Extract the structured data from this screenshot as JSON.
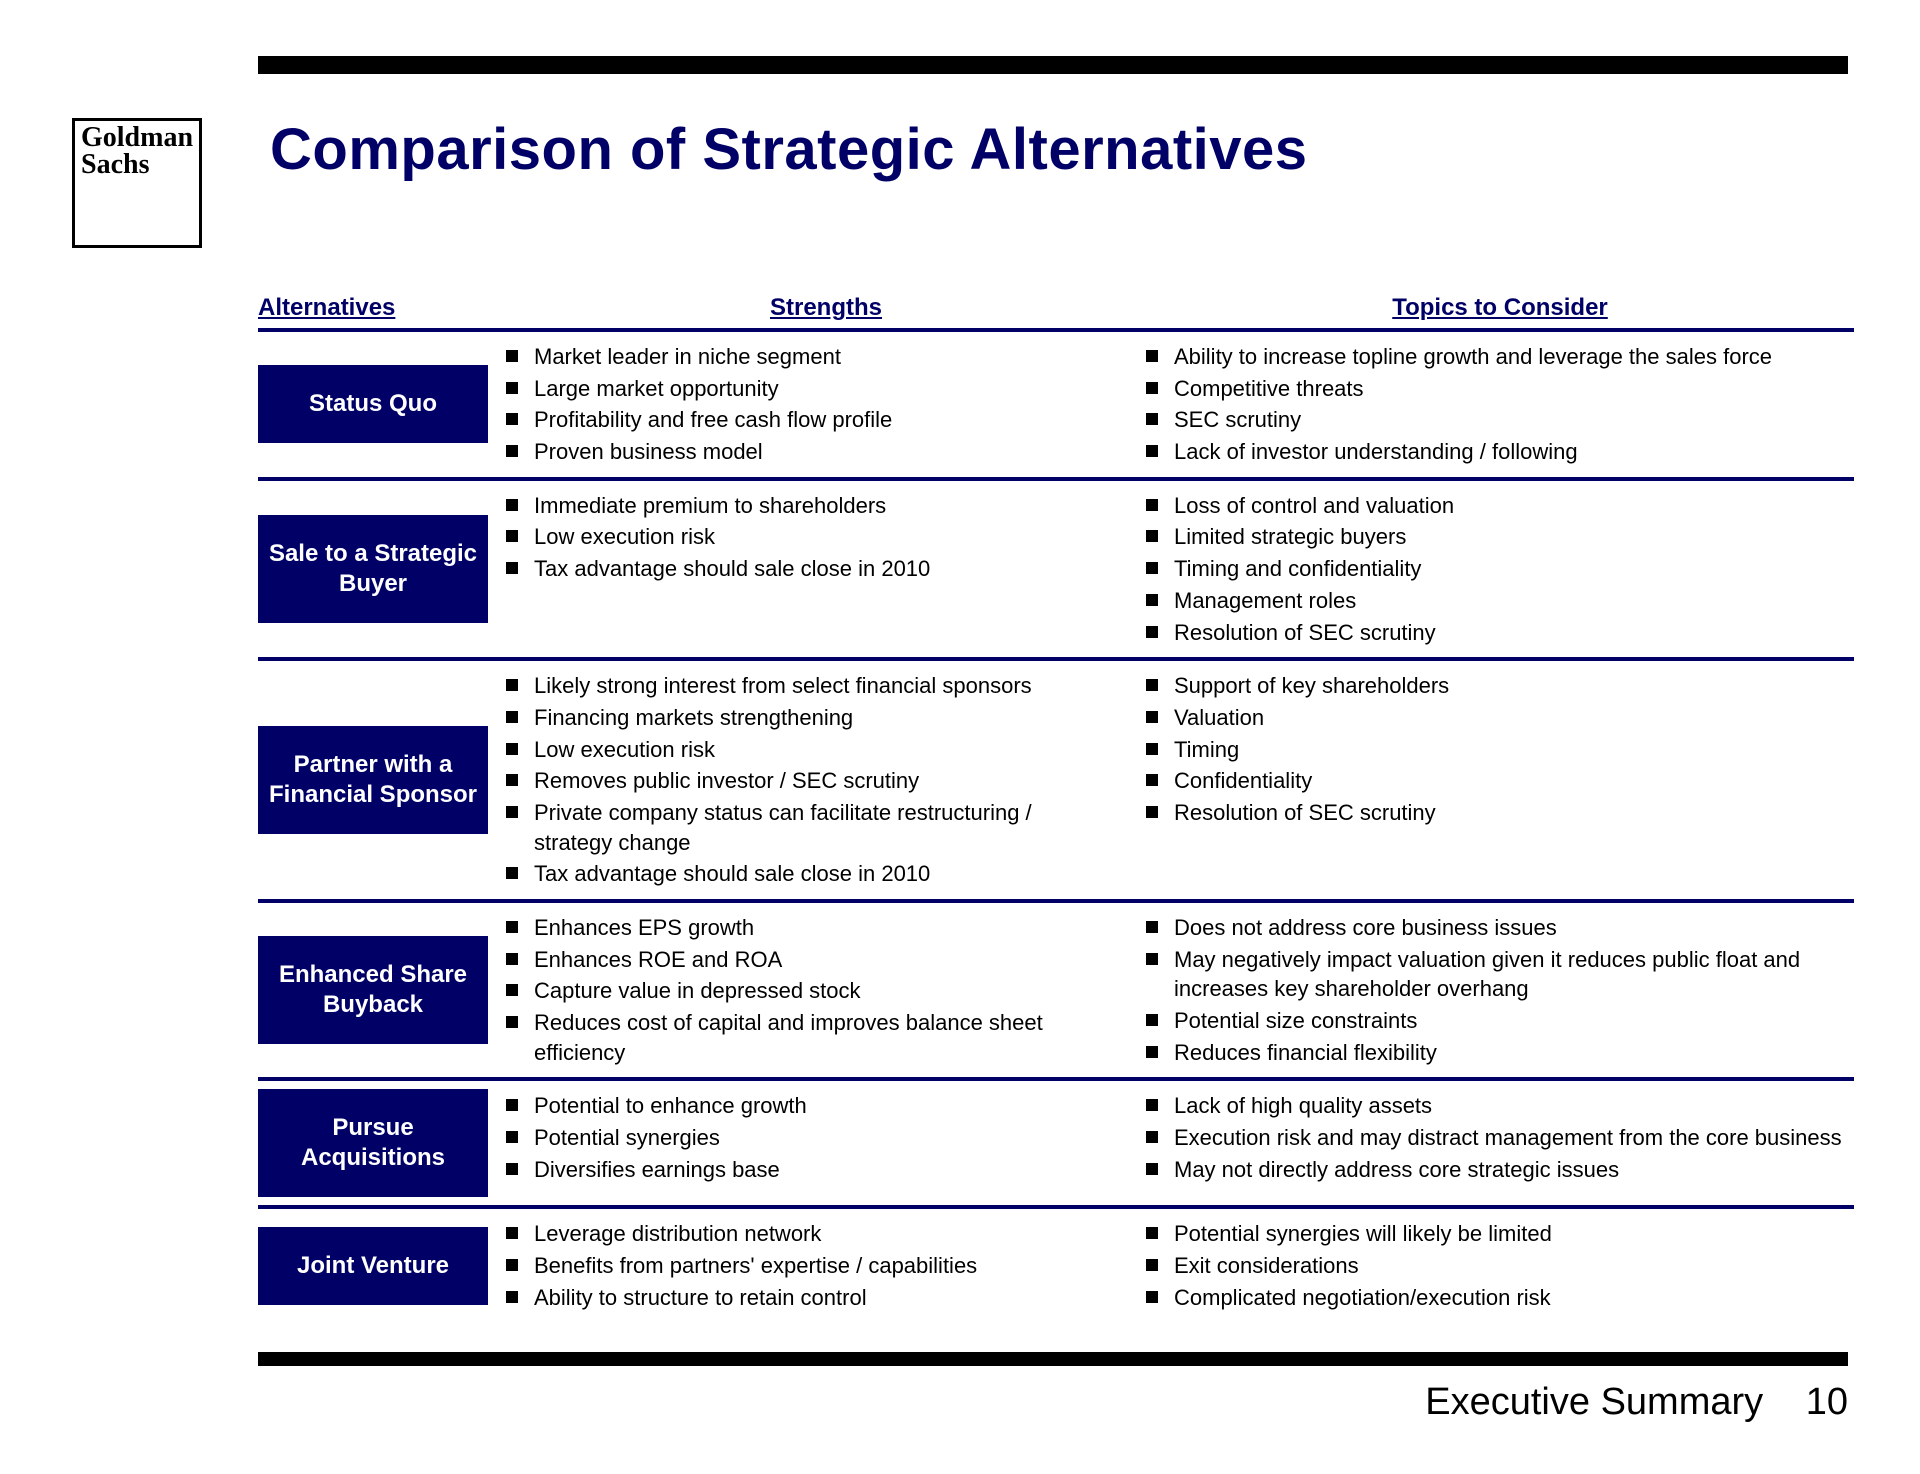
{
  "colors": {
    "brand_navy": "#000066",
    "black": "#000000",
    "white": "#ffffff"
  },
  "logo": {
    "line1": "Goldman",
    "line2": "Sachs"
  },
  "title": "Comparison of Strategic Alternatives",
  "headers": {
    "alternatives": "Alternatives",
    "strengths": "Strengths",
    "topics": "Topics to Consider"
  },
  "rows": [
    {
      "alternative": "Status Quo",
      "strengths": [
        "Market leader in niche segment",
        "Large market opportunity",
        "Profitability and free cash flow profile",
        "Proven business model"
      ],
      "topics": [
        "Ability to increase topline growth and leverage the sales force",
        "Competitive threats",
        "SEC scrutiny",
        "Lack of investor understanding / following"
      ]
    },
    {
      "alternative": "Sale to a Strategic Buyer",
      "strengths": [
        "Immediate premium to shareholders",
        "Low execution risk",
        "Tax advantage should sale close in 2010"
      ],
      "topics": [
        "Loss of control and valuation",
        "Limited strategic buyers",
        "Timing and confidentiality",
        "Management roles",
        "Resolution of SEC scrutiny"
      ]
    },
    {
      "alternative": "Partner with a Financial Sponsor",
      "strengths": [
        "Likely strong interest from select financial sponsors",
        "Financing markets strengthening",
        "Low execution risk",
        "Removes public investor / SEC scrutiny",
        "Private company status can facilitate restructuring / strategy change",
        "Tax advantage should sale close in 2010"
      ],
      "topics": [
        "Support of key shareholders",
        "Valuation",
        "Timing",
        "Confidentiality",
        "Resolution of SEC scrutiny"
      ]
    },
    {
      "alternative": "Enhanced Share Buyback",
      "strengths": [
        "Enhances EPS growth",
        "Enhances ROE and ROA",
        "Capture value in depressed stock",
        "Reduces cost of capital and improves balance sheet efficiency"
      ],
      "topics": [
        "Does not address core business issues",
        "May negatively impact valuation given it reduces public float and increases key shareholder overhang",
        "Potential size constraints",
        "Reduces financial flexibility"
      ]
    },
    {
      "alternative": "Pursue Acquisitions",
      "strengths": [
        "Potential to enhance growth",
        "Potential synergies",
        "Diversifies earnings base"
      ],
      "topics": [
        "Lack of high quality assets",
        "Execution risk and may distract management from the core business",
        "May not directly address core strategic issues"
      ]
    },
    {
      "alternative": "Joint Venture",
      "strengths": [
        "Leverage distribution network",
        "Benefits from partners' expertise / capabilities",
        "Ability to structure to retain control"
      ],
      "topics": [
        "Potential synergies will likely be limited",
        "Exit considerations",
        "Complicated negotiation/execution risk"
      ]
    }
  ],
  "footer": {
    "section": "Executive Summary",
    "page": "10"
  }
}
